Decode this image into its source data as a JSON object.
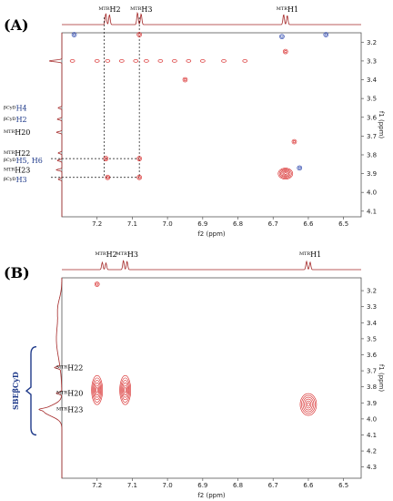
{
  "chart_data": [
    {
      "type": "scatter",
      "panel_label": "(A)",
      "xlabel": "f2 (ppm)",
      "ylabel": "f1 (ppm)",
      "xlim": [
        7.3,
        6.45
      ],
      "ylim": [
        3.15,
        4.13
      ],
      "x_ticks": [
        "7.2",
        "7.1",
        "7.0",
        "6.9",
        "6.8",
        "6.7",
        "6.6",
        "6.5"
      ],
      "x_tick_values": [
        7.2,
        7.1,
        7.0,
        6.9,
        6.8,
        6.7,
        6.6,
        6.5
      ],
      "y_ticks": [
        "3.2",
        "3.3",
        "3.4",
        "3.5",
        "3.6",
        "3.7",
        "3.8",
        "3.9",
        "4.0",
        "4.1"
      ],
      "y_tick_values": [
        3.2,
        3.3,
        3.4,
        3.5,
        3.6,
        3.7,
        3.8,
        3.9,
        4.0,
        4.1
      ],
      "top_peaks": [
        {
          "sup": "MTR",
          "main": "H2",
          "x": 7.17
        },
        {
          "sup": "MTR",
          "main": "H3",
          "x": 7.08
        },
        {
          "sup": "MTR",
          "main": "H1",
          "x": 6.665
        }
      ],
      "left_peaks": [
        {
          "sup": "βCyD",
          "main": "H4",
          "y": 3.55,
          "color": "#1f3a8a"
        },
        {
          "sup": "βCyD",
          "main": "H2",
          "y": 3.61,
          "color": "#1f3a8a"
        },
        {
          "sup": "MTR",
          "main": "H20",
          "y": 3.68,
          "color": "#000000"
        },
        {
          "sup": "MTR",
          "main": "H22",
          "y": 3.79,
          "color": "#000000"
        },
        {
          "sup": "βCyD",
          "main": "H5, H6",
          "y": 3.83,
          "color": "#1f3a8a"
        },
        {
          "sup": "MTR",
          "main": "H23",
          "y": 3.88,
          "color": "#000000"
        },
        {
          "sup": "βCyD",
          "main": "H3",
          "y": 3.93,
          "color": "#1f3a8a"
        }
      ],
      "guide_lines": {
        "x": [
          7.18,
          7.08
        ],
        "y": [
          3.82,
          3.92
        ]
      },
      "cross_peaks": [
        {
          "x": 7.175,
          "y": 3.82,
          "color": "red"
        },
        {
          "x": 7.17,
          "y": 3.92,
          "color": "red"
        },
        {
          "x": 7.08,
          "y": 3.82,
          "color": "red"
        },
        {
          "x": 7.08,
          "y": 3.92,
          "color": "red"
        },
        {
          "x": 7.08,
          "y": 3.16,
          "color": "red"
        },
        {
          "x": 6.665,
          "y": 3.9,
          "color": "red"
        },
        {
          "x": 6.665,
          "y": 3.25,
          "color": "red"
        },
        {
          "x": 6.95,
          "y": 3.4,
          "color": "red"
        },
        {
          "x": 6.64,
          "y": 3.73,
          "color": "red"
        },
        {
          "x": 7.265,
          "y": 3.16,
          "color": "blue"
        },
        {
          "x": 6.625,
          "y": 3.87,
          "color": "blue"
        },
        {
          "x": 6.675,
          "y": 3.17,
          "color": "blue"
        },
        {
          "x": 6.55,
          "y": 3.16,
          "color": "blue"
        }
      ]
    },
    {
      "type": "scatter",
      "panel_label": "(B)",
      "xlabel": "f2 (ppm)",
      "ylabel": "f1 (ppm)",
      "xlim": [
        7.3,
        6.45
      ],
      "ylim": [
        3.12,
        4.37
      ],
      "x_ticks": [
        "7.2",
        "7.1",
        "7.0",
        "6.9",
        "6.8",
        "6.7",
        "6.6",
        "6.5"
      ],
      "x_tick_values": [
        7.2,
        7.1,
        7.0,
        6.9,
        6.8,
        6.7,
        6.6,
        6.5
      ],
      "y_ticks": [
        "3.2",
        "3.3",
        "3.4",
        "3.5",
        "3.6",
        "3.7",
        "3.8",
        "3.9",
        "4.0",
        "4.1",
        "4.2",
        "4.3"
      ],
      "y_tick_values": [
        3.2,
        3.3,
        3.4,
        3.5,
        3.6,
        3.7,
        3.8,
        3.9,
        4.0,
        4.1,
        4.2,
        4.3
      ],
      "top_peaks": [
        {
          "sup": "MTR",
          "main": "H2",
          "x": 7.18
        },
        {
          "sup": "MTR",
          "main": "H3",
          "x": 7.12
        },
        {
          "sup": "MTR",
          "main": "H1",
          "x": 6.6
        }
      ],
      "left_peaks": [
        {
          "sup": "MTR",
          "main": "H22",
          "y": 3.68,
          "color": "#000000"
        },
        {
          "sup": "MTR",
          "main": "H20",
          "y": 3.84,
          "color": "#000000"
        },
        {
          "sup": "MTR",
          "main": "H23",
          "y": 3.94,
          "color": "#000000"
        }
      ],
      "bracket_label": "SBEβCyD",
      "bracket_range": [
        3.55,
        4.1
      ],
      "cross_peaks": [
        {
          "x": 7.2,
          "y": 3.82,
          "color": "red",
          "size": "large"
        },
        {
          "x": 7.12,
          "y": 3.82,
          "color": "red",
          "size": "large"
        },
        {
          "x": 6.6,
          "y": 3.91,
          "color": "red",
          "size": "large"
        },
        {
          "x": 7.2,
          "y": 3.16,
          "color": "red",
          "size": "small"
        }
      ]
    }
  ]
}
